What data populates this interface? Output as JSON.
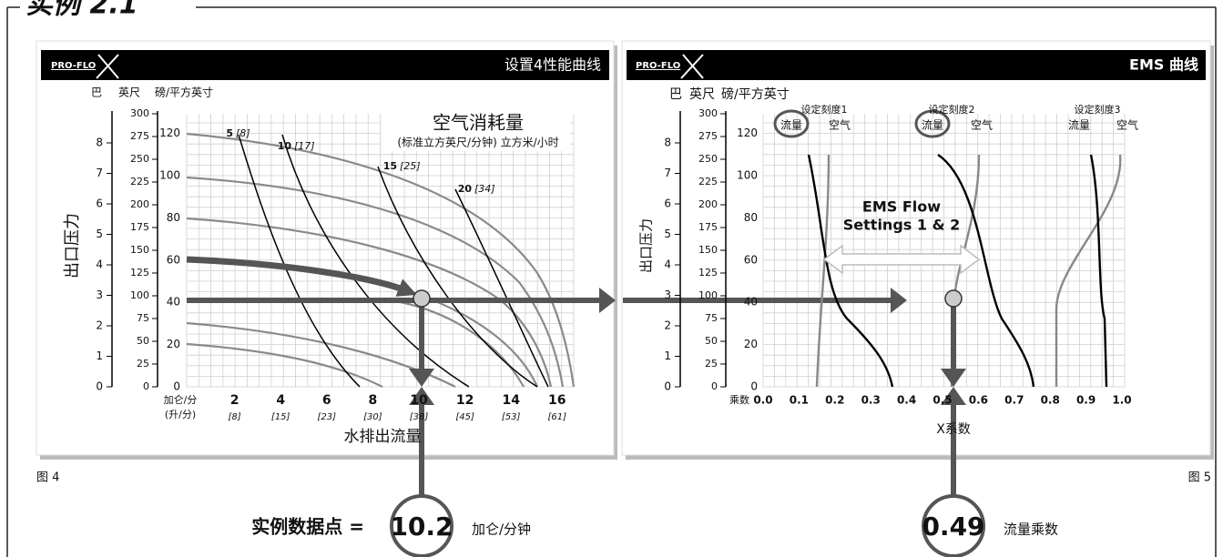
{
  "header": {
    "title": "实例 2.1"
  },
  "figure4": {
    "logo": "PRO-FLO",
    "title": "设置4性能曲线",
    "unit_bar": "巴",
    "unit_ft": "英尺",
    "unit_psi": "磅/平方英寸",
    "y_label": "出口压力",
    "bar_ticks": [
      0,
      1,
      2,
      3,
      4,
      5,
      6,
      7,
      8
    ],
    "psi_ticks": [
      0,
      25,
      50,
      75,
      100,
      125,
      150,
      175,
      200,
      225,
      250,
      275,
      300
    ],
    "ft_ticks": [
      0,
      20,
      40,
      60,
      80,
      100,
      120
    ],
    "x_unit": "加仑/分",
    "x_unit_metric": "(升/分)",
    "x_ticks": [
      2,
      4,
      6,
      8,
      10,
      12,
      14,
      16
    ],
    "x_ticks_metric": [
      "[8]",
      "[15]",
      "[23]",
      "[30]",
      "[38]",
      "[45]",
      "[53]",
      "[61]"
    ],
    "x_label": "水排出流量",
    "air_title": "空气消耗量",
    "air_units": "(标准立方英尺/分钟) 立方米/小时",
    "air_curves": [
      {
        "label": "5",
        "metric": "[8]"
      },
      {
        "label": "10",
        "metric": "[17]"
      },
      {
        "label": "15",
        "metric": "[25]"
      },
      {
        "label": "20",
        "metric": "[34]"
      }
    ],
    "caption": "图 4"
  },
  "figure5": {
    "logo": "PRO-FLO",
    "title": "EMS 曲线",
    "unit_bar": "巴",
    "unit_ft": "英尺",
    "unit_psi": "磅/平方英寸",
    "y_label": "出口压力",
    "bar_ticks": [
      0,
      1,
      2,
      3,
      4,
      5,
      6,
      7,
      8
    ],
    "psi_ticks": [
      0,
      25,
      50,
      75,
      100,
      125,
      150,
      175,
      200,
      225,
      250,
      275,
      300
    ],
    "ft_ticks": [
      0,
      20,
      40,
      60,
      80,
      100,
      120
    ],
    "x_prefix": "乘数",
    "x_ticks": [
      "0.0",
      "0.1",
      "0.2",
      "0.3",
      "0.4",
      "0.5",
      "0.6",
      "0.7",
      "0.8",
      "0.9",
      "1.0"
    ],
    "x_label": "X系数",
    "settings": [
      {
        "title": "设定刻度1",
        "flow": "流量",
        "air": "空气"
      },
      {
        "title": "设定刻度2",
        "flow": "流量",
        "air": "空气"
      },
      {
        "title": "设定刻度3",
        "flow": "流量",
        "air": "空气"
      }
    ],
    "ems_line1": "EMS Flow",
    "ems_line2": "Settings 1 & 2",
    "caption": "图 5"
  },
  "example": {
    "label": "实例数据点 =",
    "gpm_value": "10.2",
    "gpm_unit": "加仑/分钟",
    "multiplier_value": "0.49",
    "multiplier_unit": "流量乘数"
  }
}
